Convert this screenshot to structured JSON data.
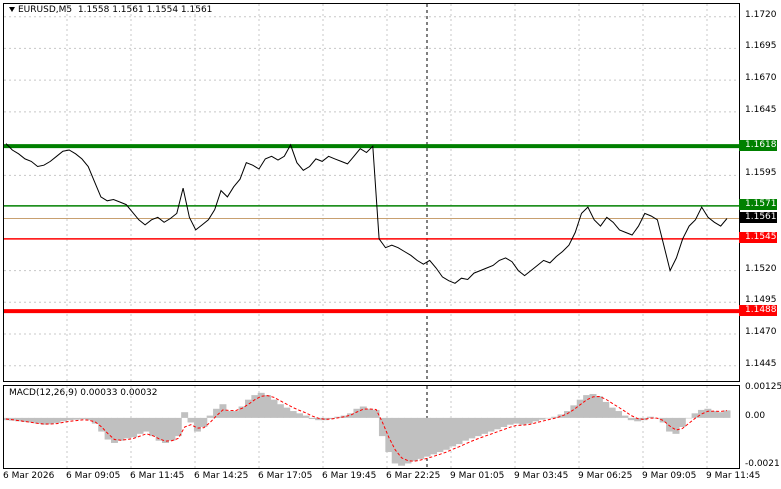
{
  "symbol": {
    "name": "EURUSD,M5",
    "ohlc": "1.1558 1.1561 1.1554 1.1561",
    "dropdown_icon": "triangle-down-icon"
  },
  "macd": {
    "header": "MACD(12,26,9) 0.00033 0.00032",
    "hist_color": "#c0c0c0",
    "signal_color": "#ff0000"
  },
  "colors": {
    "support_green": "#008000",
    "resistance_red": "#ff0000",
    "bid_line": "#c8a070",
    "price_line": "#000000"
  },
  "price_axis": [
    "1.1720",
    "1.1695",
    "1.1670",
    "1.1645",
    "1.1595",
    "1.1520",
    "1.1495",
    "1.1470",
    "1.1445"
  ],
  "macd_axis": [
    "0.00125",
    "0.00",
    "-0.0021"
  ],
  "time_axis": [
    "6 Mar 2026",
    "6 Mar 09:05",
    "6 Mar 11:45",
    "6 Mar 14:25",
    "6 Mar 17:05",
    "6 Mar 19:45",
    "6 Mar 22:25",
    "9 Mar 01:05",
    "9 Mar 03:45",
    "9 Mar 06:25",
    "9 Mar 09:05",
    "9 Mar 11:45"
  ],
  "levels": [
    {
      "price": 1.1618,
      "label": "1.1618",
      "kind": "green-thick"
    },
    {
      "price": 1.1571,
      "label": "1.1571",
      "kind": "green"
    },
    {
      "price": 1.1561,
      "label": "1.1561",
      "kind": "current"
    },
    {
      "price": 1.1545,
      "label": "1.1545",
      "kind": "red"
    },
    {
      "price": 1.1488,
      "label": "1.1488",
      "kind": "red-thick"
    }
  ],
  "chart_data": {
    "type": "line",
    "series": [
      {
        "values": [
          1.162,
          1.1615,
          1.1612,
          1.1608,
          1.1606,
          1.1602,
          1.1603,
          1.1606,
          1.161,
          1.1614,
          1.1615,
          1.1612,
          1.1608,
          1.1602,
          1.159,
          1.1578,
          1.1575,
          1.1576,
          1.1574,
          1.1572,
          1.1566,
          1.156,
          1.1556,
          1.156,
          1.1562,
          1.1558,
          1.1561,
          1.1565,
          1.1585,
          1.1562,
          1.1552,
          1.1556,
          1.156,
          1.1568,
          1.1583,
          1.1578,
          1.1586,
          1.1592,
          1.1605,
          1.1603,
          1.16,
          1.1608,
          1.161,
          1.1607,
          1.161,
          1.1619,
          1.1605,
          1.1599,
          1.1602,
          1.1608,
          1.1606,
          1.161,
          1.1608,
          1.1606,
          1.1604,
          1.161,
          1.1616,
          1.1613,
          1.1618,
          1.1545,
          1.1538,
          1.154,
          1.1538,
          1.1535,
          1.1532,
          1.1528,
          1.1525,
          1.1528,
          1.1522,
          1.1515,
          1.1512,
          1.151,
          1.1514,
          1.1513,
          1.1518,
          1.152,
          1.1522,
          1.1524,
          1.1528,
          1.153,
          1.1527,
          1.152,
          1.1516,
          1.152,
          1.1524,
          1.1528,
          1.1526,
          1.1531,
          1.1535,
          1.154,
          1.155,
          1.1565,
          1.157,
          1.156,
          1.1555,
          1.1562,
          1.1558,
          1.1552,
          1.155,
          1.1548,
          1.1555,
          1.1565,
          1.1563,
          1.156,
          1.154,
          1.152,
          1.153,
          1.1545,
          1.1555,
          1.156,
          1.157,
          1.1562,
          1.1558,
          1.1555,
          1.1561
        ]
      }
    ],
    "ylim": [
      1.1433,
      1.173
    ]
  },
  "macd_data": {
    "histogram": [
      -0.0001,
      -0.00012,
      -0.00015,
      -0.00018,
      -0.0002,
      -0.00025,
      -0.0003,
      -0.00028,
      -0.00022,
      -0.00015,
      -0.0001,
      -8e-05,
      -6e-05,
      -0.0001,
      -0.00025,
      -0.0006,
      -0.00095,
      -0.0011,
      -0.001,
      -0.0009,
      -0.00085,
      -0.0007,
      -0.0006,
      -0.0008,
      -0.001,
      -0.0011,
      -0.001,
      -0.0008,
      0.00025,
      -0.0002,
      -0.0006,
      -0.0004,
      0.0001,
      0.0004,
      0.0006,
      0.0003,
      0.0003,
      0.0005,
      0.0008,
      0.001,
      0.0011,
      0.001,
      0.0008,
      0.0006,
      0.00045,
      0.0003,
      0.0002,
      0.0001,
      -5e-05,
      -0.0001,
      -0.0001,
      -5e-05,
      5e-05,
      0.0001,
      0.0002,
      0.0004,
      0.0005,
      0.0004,
      0.00035,
      -0.0008,
      -0.0015,
      -0.002,
      -0.0021,
      -0.002,
      -0.0019,
      -0.0018,
      -0.0017,
      -0.0016,
      -0.0015,
      -0.0014,
      -0.00125,
      -0.00115,
      -0.001,
      -0.0009,
      -0.0008,
      -0.0007,
      -0.0006,
      -0.0005,
      -0.0004,
      -0.0003,
      -0.00025,
      -0.0003,
      -0.00025,
      -0.00015,
      -8e-05,
      0.0,
      5e-05,
      0.00015,
      0.0003,
      0.00055,
      0.0008,
      0.001,
      0.00105,
      0.00095,
      0.0007,
      0.00045,
      0.0003,
      0.0001,
      -0.0001,
      -0.00015,
      -0.0001,
      5e-05,
      0.0,
      -0.0002,
      -0.0006,
      -0.0007,
      -0.0004,
      0.0,
      0.0002,
      0.00035,
      0.0004,
      0.0003,
      0.00025,
      0.00033
    ],
    "signal": [
      -5e-05,
      -8e-05,
      -0.00012,
      -0.00016,
      -0.0002,
      -0.00024,
      -0.00027,
      -0.00027,
      -0.00025,
      -0.0002,
      -0.00015,
      -0.00012,
      -9e-05,
      -0.0001,
      -0.00018,
      -0.0004,
      -0.0007,
      -0.00095,
      -0.00098,
      -0.00095,
      -0.0009,
      -0.0008,
      -0.0007,
      -0.00078,
      -0.00092,
      -0.00102,
      -0.001,
      -0.0009,
      -0.0004,
      -0.0003,
      -0.00045,
      -0.00043,
      -0.0002,
      0.0001,
      0.00035,
      0.00033,
      0.00032,
      0.00042,
      0.0006,
      0.0008,
      0.00095,
      0.00098,
      0.0009,
      0.00075,
      0.0006,
      0.00045,
      0.00033,
      0.00022,
      8e-05,
      -2e-05,
      -6e-05,
      -5e-05,
      0.0,
      5e-05,
      0.00012,
      0.00026,
      0.00038,
      0.00039,
      0.00037,
      -0.0002,
      -0.00085,
      -0.0014,
      -0.00175,
      -0.00188,
      -0.0019,
      -0.00185,
      -0.00178,
      -0.00169,
      -0.0016,
      -0.0015,
      -0.00138,
      -0.00127,
      -0.00114,
      -0.00102,
      -0.00091,
      -0.00081,
      -0.00071,
      -0.00061,
      -0.00051,
      -0.00041,
      -0.00033,
      -0.00032,
      -0.00029,
      -0.00022,
      -0.00015,
      -8e-05,
      -2e-05,
      7e-05,
      0.00019,
      0.00037,
      0.00058,
      0.00079,
      0.00092,
      0.00094,
      0.00082,
      0.00064,
      0.00047,
      0.00029,
      0.0001,
      -3e-05,
      -7e-05,
      -1e-05,
      -1e-05,
      -0.00011,
      -0.00035,
      -0.00053,
      -0.00047,
      -0.00024,
      -2e-05,
      0.00017,
      0.00029,
      0.0003,
      0.00028,
      0.00032
    ],
    "ylim": [
      -0.0022,
      0.0014
    ]
  }
}
